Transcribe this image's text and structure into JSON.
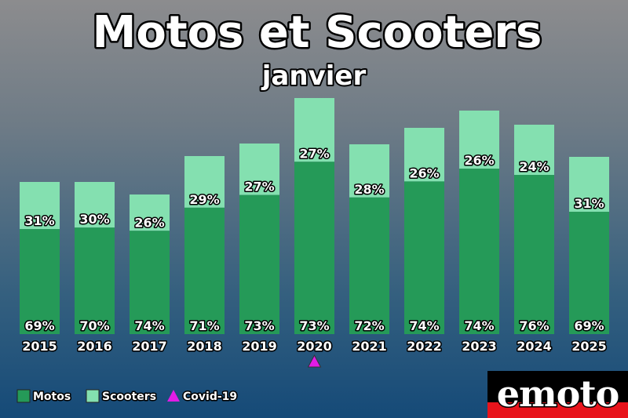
{
  "chart_data": {
    "type": "bar",
    "stacked": true,
    "title": "Motos et Scooters",
    "subtitle": "janvier",
    "categories": [
      "2015",
      "2016",
      "2017",
      "2018",
      "2019",
      "2020",
      "2021",
      "2022",
      "2023",
      "2024",
      "2025"
    ],
    "totals": [
      194,
      194,
      178,
      227,
      243,
      301,
      242,
      263,
      285,
      267,
      226
    ],
    "series": [
      {
        "name": "Motos",
        "color": "#259a58",
        "percent_labels": [
          "69%",
          "70%",
          "74%",
          "71%",
          "73%",
          "73%",
          "72%",
          "74%",
          "74%",
          "76%",
          "69%"
        ]
      },
      {
        "name": "Scooters",
        "color": "#84e0b0",
        "percent_labels": [
          "31%",
          "30%",
          "26%",
          "29%",
          "27%",
          "27%",
          "28%",
          "26%",
          "26%",
          "24%",
          "31%"
        ]
      }
    ],
    "annotation": {
      "name": "Covid-19",
      "category": "2020",
      "marker": "triangle",
      "color": "#e21ce6"
    },
    "ylim": [
      0,
      301
    ],
    "legend_position": "bottom-left",
    "grid": false
  },
  "logo": {
    "text": "emoto"
  }
}
